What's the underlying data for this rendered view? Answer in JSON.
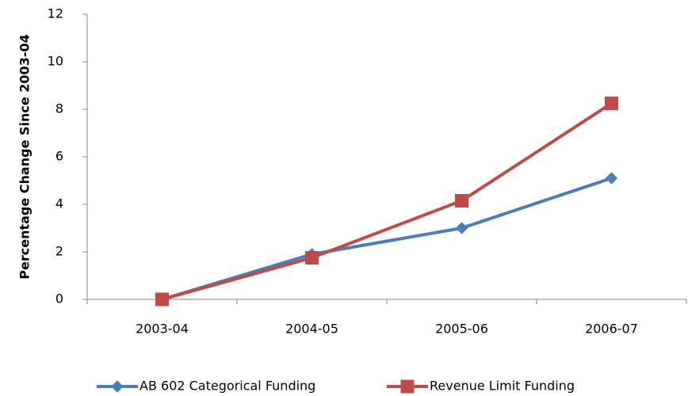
{
  "chart_data": {
    "type": "line",
    "y_label": "Percentage Change Since 2003-04",
    "categories": [
      "2003-04",
      "2004-05",
      "2005-06",
      "2006-07"
    ],
    "series": [
      {
        "name": "AB 602 Categorical Funding",
        "color": "#4a7ebb",
        "marker": "diamond",
        "values": [
          0,
          1.9,
          3.0,
          5.1
        ]
      },
      {
        "name": "Revenue Limit Funding",
        "color": "#be4b48",
        "marker": "square",
        "values": [
          0,
          1.75,
          4.15,
          8.25
        ]
      }
    ],
    "ylim": [
      0,
      12
    ],
    "yticks": [
      0,
      2,
      4,
      6,
      8,
      10,
      12
    ],
    "grid": false,
    "legend": "bottom"
  }
}
